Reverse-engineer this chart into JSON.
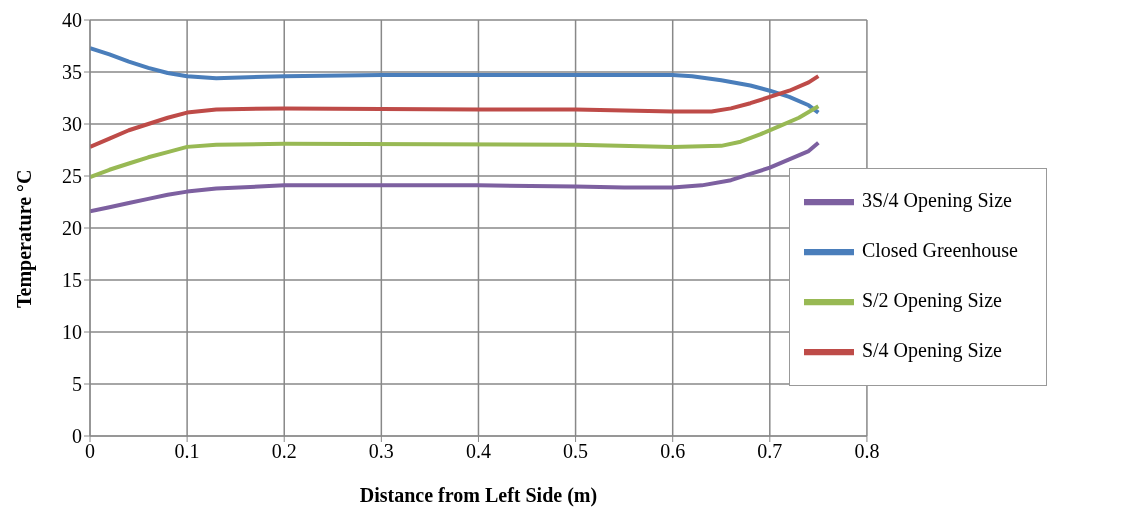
{
  "chart_data": {
    "type": "line",
    "xlabel": "Distance from Left Side (m)",
    "ylabel": "Temperature °C",
    "xlim": [
      0,
      0.8
    ],
    "xticks": [
      0,
      0.1,
      0.2,
      0.3,
      0.4,
      0.5,
      0.6,
      0.7,
      0.8
    ],
    "ylim": [
      0,
      40
    ],
    "yticks": [
      0,
      5,
      10,
      15,
      20,
      25,
      30,
      35,
      40
    ],
    "grid": true,
    "legend": "bottom right",
    "marker": "none",
    "line_style": "solid",
    "series": [
      {
        "name": "Closed Greenhouse",
        "color": "#4a7ebb",
        "x": [
          0,
          0.02,
          0.04,
          0.06,
          0.08,
          0.1,
          0.13,
          0.2,
          0.3,
          0.5,
          0.6,
          0.62,
          0.65,
          0.68,
          0.7,
          0.72,
          0.74,
          0.75
        ],
        "values": [
          37.3,
          36.7,
          36.0,
          35.4,
          34.9,
          34.6,
          34.4,
          34.6,
          34.7,
          34.7,
          34.7,
          34.6,
          34.2,
          33.7,
          33.2,
          32.6,
          31.8,
          31.1
        ]
      },
      {
        "name": "S/4 Opening Size",
        "color": "#be4b48",
        "x": [
          0,
          0.02,
          0.04,
          0.06,
          0.08,
          0.1,
          0.13,
          0.2,
          0.4,
          0.5,
          0.55,
          0.6,
          0.64,
          0.66,
          0.68,
          0.7,
          0.72,
          0.74,
          0.75
        ],
        "values": [
          27.8,
          28.6,
          29.4,
          30.0,
          30.6,
          31.1,
          31.4,
          31.5,
          31.4,
          31.4,
          31.3,
          31.2,
          31.2,
          31.5,
          32.0,
          32.6,
          33.2,
          34.0,
          34.6
        ]
      },
      {
        "name": "S/2 Opening Size",
        "color": "#98b954",
        "x": [
          0,
          0.02,
          0.04,
          0.06,
          0.08,
          0.1,
          0.13,
          0.2,
          0.5,
          0.6,
          0.65,
          0.67,
          0.69,
          0.71,
          0.73,
          0.75
        ],
        "values": [
          24.9,
          25.6,
          26.2,
          26.8,
          27.3,
          27.8,
          28.0,
          28.1,
          28.0,
          27.8,
          27.9,
          28.3,
          29.0,
          29.8,
          30.6,
          31.7
        ]
      },
      {
        "name": "3S/4 Opening Size",
        "color": "#7d60a0",
        "x": [
          0,
          0.02,
          0.04,
          0.06,
          0.08,
          0.1,
          0.13,
          0.2,
          0.4,
          0.5,
          0.55,
          0.6,
          0.63,
          0.66,
          0.68,
          0.7,
          0.72,
          0.74,
          0.75
        ],
        "values": [
          21.6,
          22.0,
          22.4,
          22.8,
          23.2,
          23.5,
          23.8,
          24.1,
          24.1,
          24.0,
          23.9,
          23.9,
          24.1,
          24.6,
          25.2,
          25.8,
          26.6,
          27.4,
          28.2
        ]
      }
    ]
  }
}
